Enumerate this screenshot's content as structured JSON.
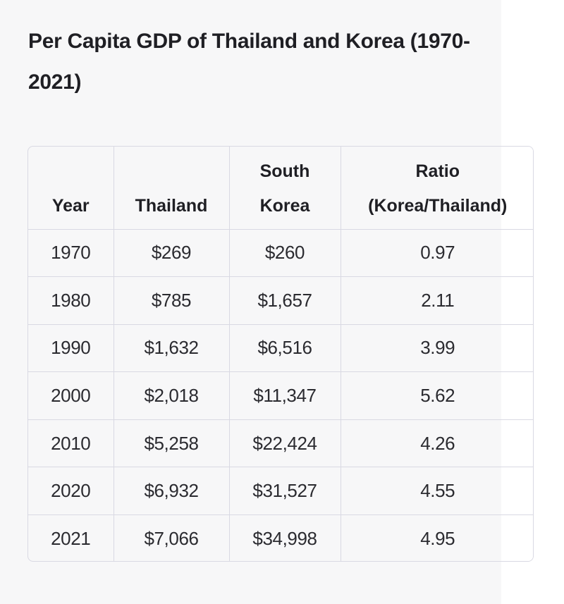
{
  "title": "Per Capita GDP of Thailand and Korea (1970-2021)",
  "table": {
    "headers": [
      "Year",
      "Thailand",
      "South Korea",
      "Ratio (Korea/Thailand)"
    ],
    "rows": [
      [
        "1970",
        "$269",
        "$260",
        "0.97"
      ],
      [
        "1980",
        "$785",
        "$1,657",
        "2.11"
      ],
      [
        "1990",
        "$1,632",
        "$6,516",
        "3.99"
      ],
      [
        "2000",
        "$2,018",
        "$11,347",
        "5.62"
      ],
      [
        "2010",
        "$5,258",
        "$22,424",
        "4.26"
      ],
      [
        "2020",
        "$6,932",
        "$31,527",
        "4.55"
      ],
      [
        "2021",
        "$7,066",
        "$34,998",
        "4.95"
      ]
    ]
  },
  "colors": {
    "background": "#ffffff",
    "panel": "#f7f7f8",
    "border": "#d9d9e3",
    "text": "#1f1f24"
  }
}
